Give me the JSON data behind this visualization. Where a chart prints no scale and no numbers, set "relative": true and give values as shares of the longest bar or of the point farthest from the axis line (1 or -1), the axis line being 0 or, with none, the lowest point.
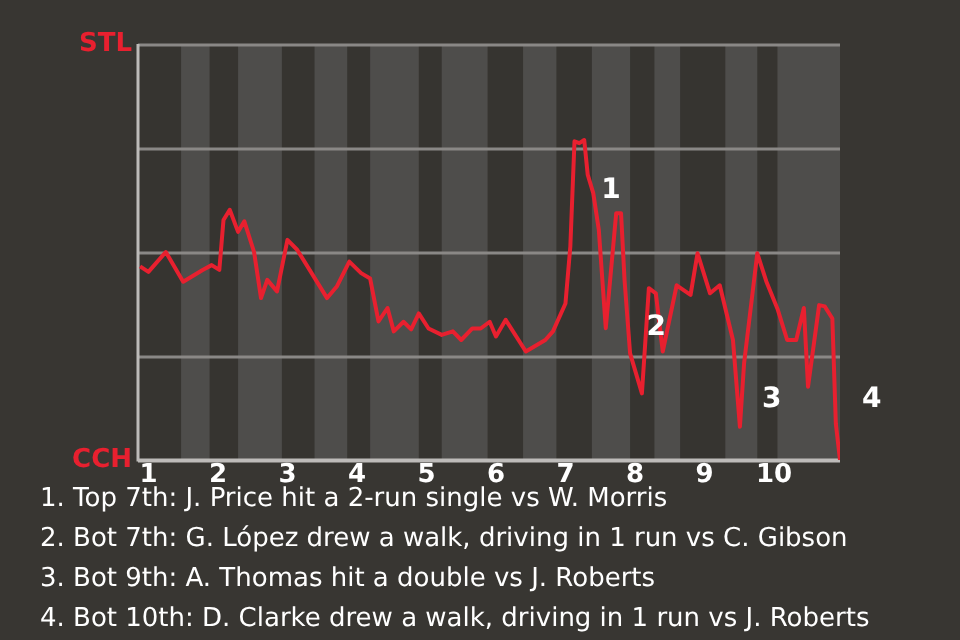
{
  "chart_data": {
    "type": "line",
    "relative": true,
    "x": [
      0.88,
      1.0,
      1.25,
      1.5,
      1.78,
      1.91,
      2.02,
      2.08,
      2.17,
      2.29,
      2.38,
      2.52,
      2.62,
      2.71,
      2.85,
      3.0,
      3.14,
      3.57,
      3.71,
      3.89,
      4.06,
      4.19,
      4.31,
      4.44,
      4.53,
      4.67,
      4.78,
      4.89,
      5.03,
      5.22,
      5.38,
      5.5,
      5.66,
      5.78,
      5.91,
      6.0,
      6.14,
      6.43,
      6.71,
      6.82,
      7.0,
      7.07,
      7.13,
      7.2,
      7.27,
      7.32,
      7.4,
      7.48,
      7.58,
      7.73,
      7.8,
      7.85,
      7.93,
      8.1,
      8.2,
      8.3,
      8.4,
      8.6,
      8.8,
      8.9,
      9.08,
      9.22,
      9.41,
      9.51,
      9.57,
      9.68,
      9.76,
      9.89,
      10.05,
      10.19,
      10.32,
      10.43,
      10.49,
      10.65,
      10.73,
      10.84,
      10.89,
      10.95
    ],
    "series": [
      {
        "color": "#e8202f",
        "values": [
          0.605,
          0.588,
          0.65,
          0.557,
          0.594,
          0.609,
          0.594,
          0.75,
          0.782,
          0.713,
          0.746,
          0.65,
          0.506,
          0.563,
          0.527,
          0.688,
          0.657,
          0.506,
          0.542,
          0.62,
          0.584,
          0.567,
          0.433,
          0.475,
          0.402,
          0.432,
          0.408,
          0.458,
          0.411,
          0.391,
          0.402,
          0.375,
          0.411,
          0.411,
          0.432,
          0.386,
          0.438,
          0.339,
          0.375,
          0.402,
          0.489,
          0.667,
          0.996,
          0.99,
          1,
          0.892,
          0.834,
          0.719,
          0.412,
          0.771,
          0.771,
          0.563,
          0.333,
          0.208,
          0.537,
          0.521,
          0.339,
          0.546,
          0.516,
          0.646,
          0.521,
          0.546,
          0.375,
          0.104,
          0.302,
          0.501,
          0.646,
          0.558,
          0.473,
          0.375,
          0.375,
          0.475,
          0.229,
          0.484,
          0.48,
          0.442,
          0.114,
          0
        ]
      }
    ],
    "xlim": [
      0.85,
      10.95
    ],
    "xticks": [
      1,
      2,
      3,
      4,
      5,
      6,
      7,
      8,
      9,
      10
    ],
    "legend": false,
    "marker": "none",
    "line_style": "solid",
    "ref_lines": [
      {
        "axis": "y",
        "value": 0,
        "label": "CCH",
        "color": "#bdbbb9"
      },
      {
        "axis": "y",
        "value": 0.325,
        "label": null,
        "color": "#8a8886"
      },
      {
        "axis": "y",
        "value": 0.65,
        "label": null,
        "color": "#8a8886"
      },
      {
        "axis": "y",
        "value": 0.975,
        "label": null,
        "color": "#8a8886"
      },
      {
        "axis": "y",
        "value": 1.3,
        "label": "STL",
        "color": "#8a8886"
      }
    ],
    "bands": [
      {
        "axis": "x",
        "from": 1.47,
        "to": 1.88,
        "color": "#4e4d4b"
      },
      {
        "axis": "x",
        "from": 2.29,
        "to": 2.92,
        "color": "#4e4d4b"
      },
      {
        "axis": "x",
        "from": 3.39,
        "to": 3.86,
        "color": "#4e4d4b"
      },
      {
        "axis": "x",
        "from": 4.19,
        "to": 4.89,
        "color": "#4e4d4b"
      },
      {
        "axis": "x",
        "from": 5.22,
        "to": 5.88,
        "color": "#4e4d4b"
      },
      {
        "axis": "x",
        "from": 6.39,
        "to": 6.87,
        "color": "#4e4d4b"
      },
      {
        "axis": "x",
        "from": 7.38,
        "to": 7.93,
        "color": "#4e4d4b"
      },
      {
        "axis": "x",
        "from": 8.28,
        "to": 8.65,
        "color": "#4e4d4b"
      },
      {
        "axis": "x",
        "from": 9.3,
        "to": 9.76,
        "color": "#4e4d4b"
      },
      {
        "axis": "x",
        "from": 10.05,
        "to": 10.95,
        "color": "#4e4d4b"
      }
    ],
    "annotations": [
      {
        "text": "1",
        "x": 7.2,
        "y": 0.99
      },
      {
        "text": "2",
        "x": 7.85,
        "y": 0.563
      },
      {
        "text": "3",
        "x": 9.51,
        "y": 0.104
      },
      {
        "text": "4",
        "x": 10.95,
        "y": 0
      },
      "1. Top 7th: J. Price hit a 2-run single vs W. Morris",
      "2. Bot 7th: G. López drew a walk, driving in 1 run vs C. Gibson",
      "3. Bot 9th: A. Thomas hit a double vs J. Roberts",
      "4. Bot 10th: D. Clarke drew a walk, driving in 1 run vs J. Roberts"
    ]
  }
}
